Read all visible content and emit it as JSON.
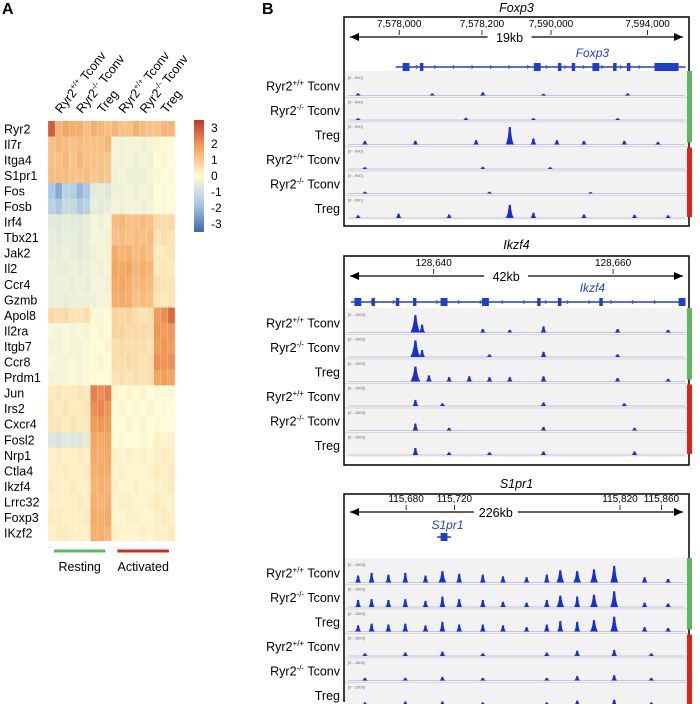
{
  "panel_a": {
    "letter": "A",
    "genes": [
      "Ryr2",
      "Il7r",
      "Itga4",
      "S1pr1",
      "Fos",
      "Fosb",
      "Irf4",
      "Tbx21",
      "Jak2",
      "Il2",
      "Ccr4",
      "Gzmb",
      "Apol8",
      "Il2ra",
      "Itgb7",
      "Ccr8",
      "Prdm1",
      "Jun",
      "Irs2",
      "Cxcr4",
      "Fosl2",
      "Nrp1",
      "Ctla4",
      "Ikzf4",
      "Lrrc32",
      "Foxp3",
      "IKzf2"
    ],
    "columns": [
      {
        "main": "Ryr2",
        "sup": "+/+",
        "rest": " Tconv"
      },
      {
        "main": "Ryr2",
        "sup": "-/-",
        "rest": " Tconv"
      },
      {
        "main": "Treg",
        "sup": "",
        "rest": ""
      },
      {
        "main": "Ryr2",
        "sup": "+/+",
        "rest": " Tconv"
      },
      {
        "main": "Ryr2",
        "sup": "-/-",
        "rest": " Tconv"
      },
      {
        "main": "Treg",
        "sup": "",
        "rest": ""
      }
    ],
    "colorbar": {
      "ticks": [
        "3",
        "2",
        "1",
        "0",
        "-1",
        "-2",
        "-3"
      ],
      "min": -3,
      "max": 3,
      "colors": {
        "high": "#c0392b",
        "mid": "#fffbd6",
        "low": "#3b6aa8"
      }
    },
    "groups": [
      {
        "label": "Resting",
        "color": "#5cb85c"
      },
      {
        "label": "Activated",
        "color": "#d9261c"
      }
    ],
    "values": [
      [
        2.5,
        1.2,
        1.5,
        1.3,
        1.3,
        1.0,
        1.3,
        1.2,
        1.0,
        1.2,
        1.0,
        1.0,
        1.3,
        1.1,
        1.0,
        1.0,
        1.2,
        1.2
      ],
      [
        1.0,
        1.2,
        1.1,
        1.0,
        1.1,
        1.0,
        1.0,
        1.0,
        1.2,
        -0.2,
        -0.3,
        -0.2,
        -0.2,
        -0.3,
        -0.2,
        0.1,
        0.0,
        0.0
      ],
      [
        1.0,
        1.0,
        1.2,
        0.9,
        1.2,
        1.0,
        1.0,
        1.0,
        0.9,
        -0.2,
        -0.3,
        -0.2,
        -0.3,
        -0.2,
        -0.3,
        0.0,
        0.1,
        0.0
      ],
      [
        1.1,
        1.1,
        1.1,
        1.0,
        1.0,
        1.1,
        0.9,
        1.0,
        0.9,
        -0.3,
        -0.2,
        -0.3,
        -0.3,
        -0.3,
        -0.2,
        -0.1,
        0.0,
        -0.1
      ],
      [
        -1.5,
        -2.0,
        -1.2,
        -1.3,
        -1.8,
        -1.5,
        -0.5,
        -0.4,
        -0.6,
        -0.3,
        -0.3,
        -0.2,
        -0.3,
        -0.2,
        -0.3,
        0.0,
        -0.1,
        0.0
      ],
      [
        -1.2,
        -1.5,
        -1.0,
        -1.0,
        -1.4,
        -1.2,
        -0.4,
        -0.5,
        -0.4,
        -0.2,
        -0.3,
        -0.2,
        -0.2,
        -0.3,
        -0.2,
        0.0,
        -0.1,
        0.0
      ],
      [
        -0.5,
        -0.6,
        -0.4,
        -0.5,
        -0.5,
        -0.4,
        -0.2,
        -0.3,
        -0.2,
        1.1,
        1.2,
        1.0,
        1.0,
        1.1,
        1.0,
        0.6,
        0.5,
        0.6
      ],
      [
        -0.4,
        -0.5,
        -0.4,
        -0.4,
        -0.5,
        -0.4,
        -0.2,
        -0.2,
        -0.3,
        1.0,
        1.1,
        1.0,
        1.1,
        1.0,
        1.1,
        0.4,
        0.5,
        0.4
      ],
      [
        -0.4,
        -0.4,
        -0.3,
        -0.4,
        -0.5,
        -0.4,
        -0.3,
        -0.2,
        -0.2,
        1.4,
        1.2,
        1.3,
        1.1,
        1.2,
        1.0,
        0.3,
        0.3,
        0.4
      ],
      [
        -0.3,
        -0.4,
        -0.4,
        -0.3,
        -0.4,
        -0.3,
        -0.2,
        -0.3,
        -0.2,
        1.5,
        1.4,
        1.5,
        1.2,
        1.3,
        1.2,
        0.3,
        0.4,
        0.3
      ],
      [
        -0.3,
        -0.3,
        -0.3,
        -0.4,
        -0.3,
        -0.4,
        -0.2,
        -0.2,
        -0.3,
        1.4,
        1.5,
        1.3,
        1.1,
        1.2,
        1.1,
        0.5,
        0.4,
        0.4
      ],
      [
        -0.3,
        -0.3,
        -0.4,
        -0.3,
        -0.3,
        -0.3,
        -0.3,
        -0.2,
        -0.2,
        1.3,
        1.4,
        1.3,
        1.0,
        1.1,
        1.0,
        0.4,
        0.3,
        0.4
      ],
      [
        0.6,
        0.5,
        0.6,
        0.4,
        0.4,
        0.5,
        -0.1,
        -0.1,
        0.0,
        0.7,
        0.6,
        0.7,
        0.5,
        0.4,
        0.5,
        1.6,
        1.8,
        2.3
      ],
      [
        -0.1,
        -0.2,
        -0.1,
        -0.2,
        -0.1,
        -0.2,
        0.0,
        0.1,
        0.0,
        0.7,
        0.7,
        0.6,
        0.6,
        0.6,
        0.5,
        1.7,
        1.6,
        1.7
      ],
      [
        -0.2,
        -0.2,
        -0.1,
        -0.2,
        -0.2,
        -0.1,
        0.0,
        0.0,
        0.1,
        0.5,
        0.6,
        0.5,
        0.5,
        0.5,
        0.4,
        1.6,
        1.7,
        1.6
      ],
      [
        -0.1,
        -0.2,
        -0.2,
        -0.1,
        -0.2,
        -0.1,
        0.0,
        0.1,
        0.0,
        0.5,
        0.5,
        0.6,
        0.5,
        0.4,
        0.5,
        1.8,
        1.7,
        1.8
      ],
      [
        -0.2,
        -0.2,
        -0.2,
        -0.1,
        -0.2,
        -0.1,
        0.0,
        0.0,
        0.0,
        0.4,
        0.5,
        0.4,
        0.5,
        0.4,
        0.5,
        1.5,
        1.6,
        1.5
      ],
      [
        0.3,
        0.4,
        0.3,
        0.3,
        0.4,
        0.3,
        2.0,
        1.8,
        2.0,
        0.1,
        0.0,
        0.1,
        0.0,
        0.1,
        0.0,
        -0.1,
        0.0,
        -0.1
      ],
      [
        0.4,
        0.3,
        0.4,
        0.3,
        0.3,
        0.4,
        1.8,
        1.9,
        1.7,
        0.0,
        0.1,
        0.0,
        0.1,
        0.0,
        0.1,
        0.0,
        -0.1,
        0.0
      ],
      [
        0.4,
        0.4,
        0.3,
        0.4,
        0.3,
        0.3,
        1.6,
        1.7,
        1.6,
        0.0,
        0.0,
        0.1,
        0.0,
        0.1,
        0.0,
        -0.1,
        0.0,
        0.0
      ],
      [
        -0.6,
        -0.7,
        -0.5,
        -0.6,
        -0.6,
        -0.5,
        1.5,
        1.4,
        1.5,
        0.0,
        -0.1,
        0.0,
        0.0,
        -0.1,
        0.0,
        0.2,
        0.1,
        0.2
      ],
      [
        0.2,
        0.3,
        0.2,
        0.2,
        0.3,
        0.2,
        1.4,
        1.3,
        1.4,
        0.2,
        0.1,
        0.2,
        0.1,
        0.2,
        0.1,
        0.2,
        0.3,
        0.2
      ],
      [
        0.2,
        0.2,
        0.3,
        0.2,
        0.2,
        0.3,
        1.3,
        1.4,
        1.3,
        0.1,
        0.2,
        0.1,
        0.1,
        0.1,
        0.2,
        0.3,
        0.2,
        0.3
      ],
      [
        0.3,
        0.2,
        0.2,
        0.3,
        0.2,
        0.2,
        1.2,
        1.3,
        1.2,
        0.2,
        0.1,
        0.1,
        0.2,
        0.1,
        0.1,
        0.2,
        0.2,
        0.3
      ],
      [
        0.2,
        0.2,
        0.2,
        0.2,
        0.3,
        0.2,
        1.3,
        1.2,
        1.3,
        0.1,
        0.2,
        0.2,
        0.1,
        0.1,
        0.2,
        0.3,
        0.2,
        0.2
      ],
      [
        0.3,
        0.3,
        0.2,
        0.2,
        0.2,
        0.3,
        1.4,
        1.3,
        1.4,
        0.1,
        0.1,
        0.2,
        0.2,
        0.1,
        0.1,
        0.2,
        0.3,
        0.2
      ],
      [
        0.2,
        0.3,
        0.3,
        0.2,
        0.2,
        0.2,
        1.3,
        1.3,
        1.2,
        0.2,
        0.1,
        0.1,
        0.1,
        0.2,
        0.1,
        0.2,
        0.2,
        0.3
      ]
    ]
  },
  "panel_b": {
    "letter": "B",
    "track_colors": {
      "signal": "#1a2fd1",
      "gene": "#1f3fc8",
      "resting": "#5cb85c",
      "activated": "#d9261c"
    },
    "sample_tracks": [
      {
        "main": "Ryr2",
        "sup": "+/+",
        "rest": " Tconv"
      },
      {
        "main": "Ryr2",
        "sup": "-/-",
        "rest": " Tconv"
      },
      {
        "main": "Treg",
        "sup": "",
        "rest": ""
      },
      {
        "main": "Ryr2",
        "sup": "+/+",
        "rest": " Tconv"
      },
      {
        "main": "Ryr2",
        "sup": "-/-",
        "rest": " Tconv"
      },
      {
        "main": "Treg",
        "sup": "",
        "rest": ""
      }
    ],
    "loci": [
      {
        "title": "Foxp3",
        "span": "19kb",
        "gene": "Foxp3",
        "coords": [
          "7,578,000",
          "7,578,200",
          "7,590,000",
          "7,594,000"
        ],
        "scale": "[0 - 900]",
        "peaks": [
          [
            [
              0.03,
              0.12
            ],
            [
              0.25,
              0.12
            ],
            [
              0.4,
              0.18
            ],
            [
              0.58,
              0.1
            ],
            [
              0.83,
              0.12
            ]
          ],
          [
            [
              0.03,
              0.1
            ],
            [
              0.35,
              0.12
            ],
            [
              0.55,
              0.1
            ],
            [
              0.8,
              0.1
            ]
          ],
          [
            [
              0.05,
              0.2
            ],
            [
              0.2,
              0.22
            ],
            [
              0.38,
              0.25
            ],
            [
              0.48,
              1.0
            ],
            [
              0.55,
              0.35
            ],
            [
              0.62,
              0.25
            ],
            [
              0.7,
              0.2
            ],
            [
              0.82,
              0.22
            ],
            [
              0.92,
              0.15
            ]
          ],
          [
            [
              0.05,
              0.1
            ],
            [
              0.4,
              0.12
            ],
            [
              0.6,
              0.1
            ]
          ],
          [
            [
              0.05,
              0.1
            ],
            [
              0.42,
              0.1
            ],
            [
              0.72,
              0.08
            ]
          ],
          [
            [
              0.03,
              0.15
            ],
            [
              0.15,
              0.25
            ],
            [
              0.3,
              0.2
            ],
            [
              0.48,
              0.75
            ],
            [
              0.55,
              0.3
            ],
            [
              0.7,
              0.2
            ],
            [
              0.85,
              0.18
            ],
            [
              0.95,
              0.15
            ]
          ]
        ]
      },
      {
        "title": "Ikzf4",
        "span": "42kb",
        "gene": "Ikzf4",
        "coords": [
          "128,640",
          "128,660"
        ],
        "scale": "[0 - 1500]",
        "peaks": [
          [
            [
              0.2,
              1.0
            ],
            [
              0.22,
              0.45
            ],
            [
              0.4,
              0.2
            ],
            [
              0.48,
              0.15
            ],
            [
              0.58,
              0.35
            ],
            [
              0.8,
              0.2
            ],
            [
              0.95,
              0.15
            ]
          ],
          [
            [
              0.2,
              0.95
            ],
            [
              0.22,
              0.4
            ],
            [
              0.42,
              0.15
            ],
            [
              0.58,
              0.3
            ],
            [
              0.8,
              0.15
            ]
          ],
          [
            [
              0.2,
              0.85
            ],
            [
              0.24,
              0.35
            ],
            [
              0.3,
              0.25
            ],
            [
              0.36,
              0.3
            ],
            [
              0.42,
              0.25
            ],
            [
              0.48,
              0.25
            ],
            [
              0.58,
              0.3
            ],
            [
              0.8,
              0.2
            ],
            [
              0.95,
              0.15
            ]
          ],
          [
            [
              0.2,
              0.35
            ],
            [
              0.28,
              0.15
            ],
            [
              0.58,
              0.2
            ],
            [
              0.82,
              0.15
            ]
          ],
          [
            [
              0.2,
              0.4
            ],
            [
              0.3,
              0.15
            ],
            [
              0.58,
              0.2
            ],
            [
              0.85,
              0.15
            ]
          ],
          [
            [
              0.2,
              0.4
            ],
            [
              0.3,
              0.15
            ],
            [
              0.42,
              0.15
            ],
            [
              0.58,
              0.2
            ],
            [
              0.85,
              0.2
            ]
          ]
        ]
      },
      {
        "title": "S1pr1",
        "span": "226kb",
        "gene": "S1pr1",
        "coords": [
          "115,680",
          "115,720",
          "115,820",
          "115,860"
        ],
        "scale": "[0 - 1500]",
        "peaks": [
          [
            [
              0.03,
              0.4
            ],
            [
              0.07,
              0.55
            ],
            [
              0.12,
              0.45
            ],
            [
              0.17,
              0.55
            ],
            [
              0.23,
              0.4
            ],
            [
              0.28,
              0.65
            ],
            [
              0.33,
              0.5
            ],
            [
              0.4,
              0.45
            ],
            [
              0.46,
              0.35
            ],
            [
              0.53,
              0.3
            ],
            [
              0.59,
              0.45
            ],
            [
              0.63,
              0.7
            ],
            [
              0.68,
              0.65
            ],
            [
              0.73,
              0.75
            ],
            [
              0.79,
              0.95
            ],
            [
              0.88,
              0.3
            ],
            [
              0.95,
              0.2
            ]
          ],
          [
            [
              0.03,
              0.4
            ],
            [
              0.07,
              0.45
            ],
            [
              0.12,
              0.4
            ],
            [
              0.17,
              0.45
            ],
            [
              0.23,
              0.35
            ],
            [
              0.28,
              0.6
            ],
            [
              0.33,
              0.45
            ],
            [
              0.4,
              0.4
            ],
            [
              0.46,
              0.3
            ],
            [
              0.53,
              0.25
            ],
            [
              0.59,
              0.4
            ],
            [
              0.63,
              0.65
            ],
            [
              0.68,
              0.6
            ],
            [
              0.73,
              0.7
            ],
            [
              0.79,
              0.9
            ],
            [
              0.88,
              0.25
            ],
            [
              0.95,
              0.2
            ]
          ],
          [
            [
              0.03,
              0.35
            ],
            [
              0.07,
              0.45
            ],
            [
              0.12,
              0.4
            ],
            [
              0.17,
              0.45
            ],
            [
              0.23,
              0.35
            ],
            [
              0.28,
              0.55
            ],
            [
              0.33,
              0.4
            ],
            [
              0.4,
              0.4
            ],
            [
              0.46,
              0.35
            ],
            [
              0.53,
              0.25
            ],
            [
              0.59,
              0.4
            ],
            [
              0.63,
              0.6
            ],
            [
              0.68,
              0.55
            ],
            [
              0.73,
              0.65
            ],
            [
              0.79,
              0.85
            ],
            [
              0.88,
              0.25
            ],
            [
              0.95,
              0.2
            ]
          ],
          [
            [
              0.05,
              0.15
            ],
            [
              0.17,
              0.2
            ],
            [
              0.28,
              0.25
            ],
            [
              0.4,
              0.15
            ],
            [
              0.59,
              0.2
            ],
            [
              0.68,
              0.3
            ],
            [
              0.79,
              0.35
            ],
            [
              0.9,
              0.15
            ]
          ],
          [
            [
              0.05,
              0.15
            ],
            [
              0.17,
              0.15
            ],
            [
              0.28,
              0.2
            ],
            [
              0.4,
              0.15
            ],
            [
              0.59,
              0.15
            ],
            [
              0.68,
              0.25
            ],
            [
              0.79,
              0.3
            ],
            [
              0.9,
              0.15
            ]
          ],
          [
            [
              0.05,
              0.15
            ],
            [
              0.17,
              0.2
            ],
            [
              0.28,
              0.2
            ],
            [
              0.4,
              0.15
            ],
            [
              0.59,
              0.15
            ],
            [
              0.68,
              0.25
            ],
            [
              0.79,
              0.3
            ],
            [
              0.9,
              0.15
            ]
          ]
        ]
      }
    ]
  }
}
